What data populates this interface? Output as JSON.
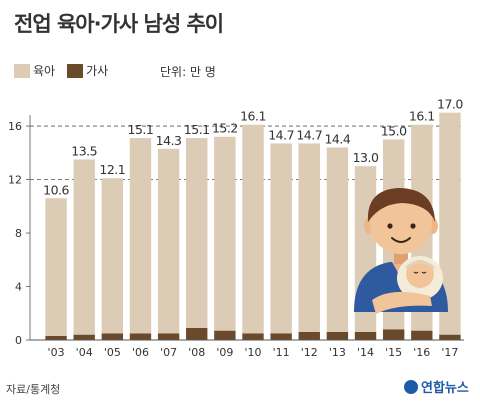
{
  "title": "전업 육아·가사 남성 추이",
  "unit_label": "단위: 만 명",
  "source": "자료/통계청",
  "watermark": "연합뉴스",
  "colors": {
    "childcare": "#dccbb5",
    "housework": "#6a4a2a",
    "axis": "#555555",
    "grid": "#555555"
  },
  "icons": [
    "father-with-baby-icon",
    "yonhap-logo-icon"
  ],
  "chart_data": {
    "type": "bar",
    "stacked": true,
    "categories": [
      "'03",
      "'04",
      "'05",
      "'06",
      "'07",
      "'08",
      "'09",
      "'10",
      "'11",
      "'12",
      "'13",
      "'14",
      "'15",
      "'16",
      "'17"
    ],
    "series": [
      {
        "name": "육아",
        "values": [
          10.3,
          13.1,
          11.6,
          14.6,
          13.8,
          14.2,
          14.5,
          15.6,
          14.2,
          14.1,
          13.8,
          12.4,
          14.2,
          15.4,
          16.6
        ]
      },
      {
        "name": "가사",
        "values": [
          0.3,
          0.4,
          0.5,
          0.5,
          0.5,
          0.9,
          0.7,
          0.5,
          0.5,
          0.6,
          0.6,
          0.6,
          0.8,
          0.7,
          0.4
        ]
      }
    ],
    "totals": [
      "10.6",
      "13.5",
      "12.1",
      "15.1",
      "14.3",
      "15.1",
      "15.2",
      "16.1",
      "14.7",
      "14.7",
      "14.4",
      "13.0",
      "15.0",
      "16.1",
      "17.0"
    ],
    "yticks": [
      "0",
      "4",
      "8",
      "12",
      "16"
    ],
    "ylim": [
      0,
      17.2
    ],
    "grid": "dashed at 12 and 16",
    "legend_position": "top-left"
  }
}
